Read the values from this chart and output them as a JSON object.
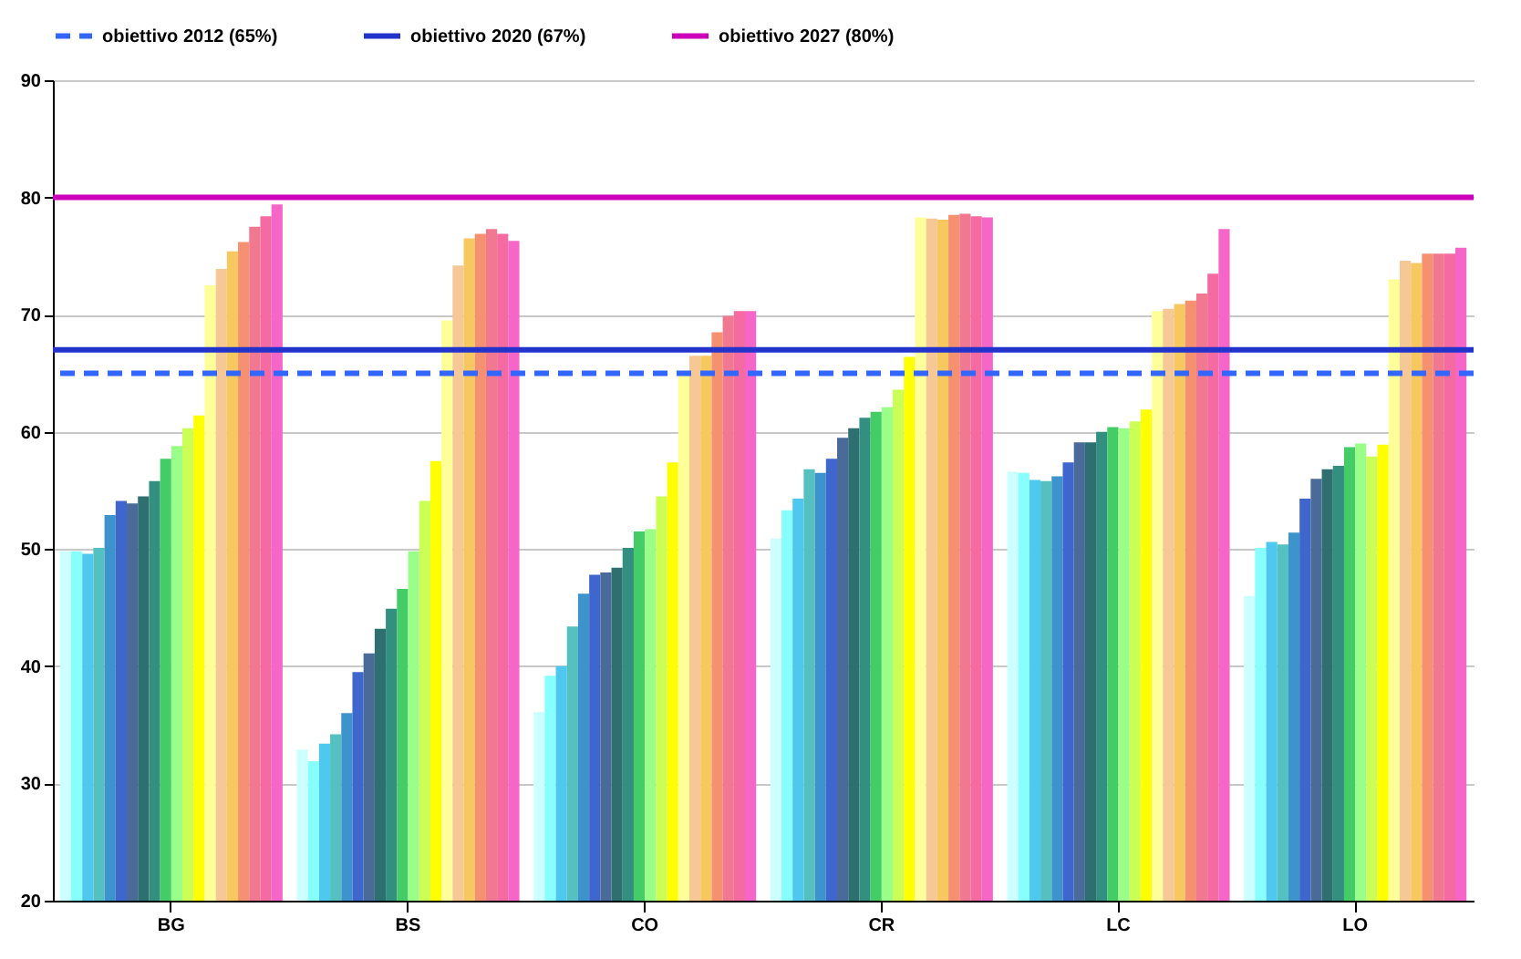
{
  "chart_data": {
    "type": "bar",
    "categories": [
      "BG",
      "BS",
      "CO",
      "CR",
      "LC",
      "LO"
    ],
    "ylim": [
      20,
      90
    ],
    "yticks": [
      20,
      30,
      40,
      50,
      60,
      70,
      80,
      90
    ],
    "grid": "y",
    "legend": "top",
    "series": [
      {
        "color": "#ccffff",
        "values": [
          49.8,
          32.9,
          36.1,
          50.9,
          56.6,
          46.0
        ]
      },
      {
        "color": "#88ffff",
        "values": [
          49.8,
          31.9,
          39.2,
          53.3,
          56.5,
          50.1
        ]
      },
      {
        "color": "#4fc8f0",
        "values": [
          49.6,
          33.4,
          40.0,
          54.3,
          55.9,
          50.6
        ]
      },
      {
        "color": "#55c0c0",
        "values": [
          50.1,
          34.2,
          43.4,
          56.8,
          55.8,
          50.4
        ]
      },
      {
        "color": "#3d94cc",
        "values": [
          52.9,
          36.0,
          46.2,
          56.5,
          56.2,
          51.4
        ]
      },
      {
        "color": "#3f66cc",
        "values": [
          54.1,
          39.5,
          47.8,
          57.7,
          57.4,
          54.3
        ]
      },
      {
        "color": "#4a6a99",
        "values": [
          53.9,
          41.1,
          48.0,
          59.5,
          59.1,
          56.0
        ]
      },
      {
        "color": "#2e7070",
        "values": [
          54.5,
          43.2,
          48.4,
          60.3,
          59.1,
          56.8
        ]
      },
      {
        "color": "#339080",
        "values": [
          55.8,
          44.9,
          50.1,
          61.2,
          60.0,
          57.1
        ]
      },
      {
        "color": "#44cc66",
        "values": [
          57.7,
          46.6,
          51.5,
          61.7,
          60.4,
          58.7
        ]
      },
      {
        "color": "#99ff88",
        "values": [
          58.8,
          49.8,
          51.7,
          62.1,
          60.3,
          59.0
        ]
      },
      {
        "color": "#ccff55",
        "values": [
          60.3,
          54.1,
          54.5,
          63.6,
          60.9,
          57.9
        ]
      },
      {
        "color": "#ffff00",
        "values": [
          61.4,
          57.5,
          57.4,
          66.4,
          61.9,
          58.9
        ]
      },
      {
        "color": "#ffff99",
        "values": [
          72.5,
          69.5,
          65.1,
          78.3,
          70.3,
          73.0
        ]
      },
      {
        "color": "#f5c896",
        "values": [
          73.9,
          74.2,
          66.5,
          78.2,
          70.5,
          74.6
        ]
      },
      {
        "color": "#f8c860",
        "values": [
          75.4,
          76.5,
          66.5,
          78.1,
          70.9,
          74.4
        ]
      },
      {
        "color": "#f59070",
        "values": [
          76.2,
          76.9,
          68.5,
          78.5,
          71.2,
          75.2
        ]
      },
      {
        "color": "#f07890",
        "values": [
          77.5,
          77.3,
          69.9,
          78.6,
          71.8,
          75.2
        ]
      },
      {
        "color": "#f56aa0",
        "values": [
          78.4,
          76.9,
          70.3,
          78.4,
          73.5,
          75.2
        ]
      },
      {
        "color": "#f566c8",
        "values": [
          79.4,
          76.3,
          70.3,
          78.3,
          77.3,
          75.7
        ]
      }
    ],
    "ref_lines": [
      {
        "axis": "y",
        "value": 65,
        "label": "obiettivo 2012 (65%)",
        "color": "#3366ff",
        "line_style": "dashed"
      },
      {
        "axis": "y",
        "value": 67,
        "label": "obiettivo 2020 (67%)",
        "color": "#2233cc",
        "line_style": "solid"
      },
      {
        "axis": "y",
        "value": 80,
        "label": "obiettivo 2027 (80%)",
        "color": "#cc00bb",
        "line_style": "solid"
      }
    ]
  }
}
